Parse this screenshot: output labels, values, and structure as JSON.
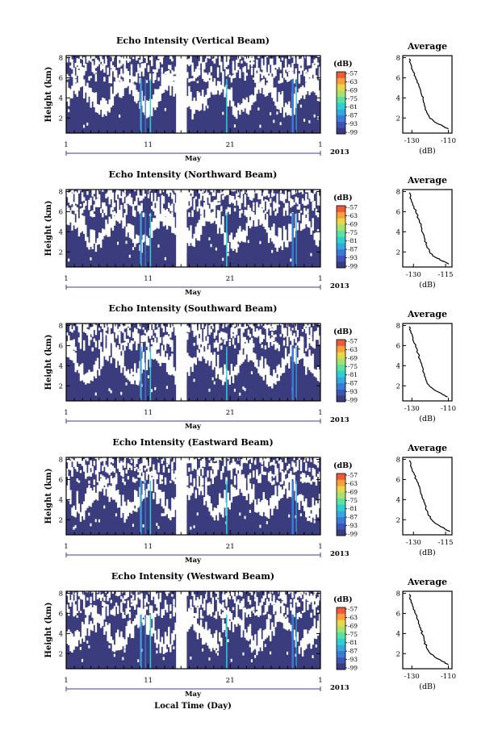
{
  "figure": {
    "xlabel": "Local Time (Day)"
  },
  "chart_data": [
    {
      "type": "heatmap",
      "title": "Echo Intensity (Vertical Beam)",
      "ylabel": "Height (km)",
      "xticks": [
        "1",
        "11",
        "21",
        "1"
      ],
      "yticks": [
        "8",
        "6",
        "4",
        "2"
      ],
      "ylim": [
        0.5,
        8.2
      ],
      "month_label": "May",
      "year_label": "2013",
      "colorbar_unit": "(dB)",
      "colorbar_ticks": [
        "-57",
        "-63",
        "-69",
        "-75",
        "-81",
        "-87",
        "-93",
        "-99"
      ],
      "colorscale": [
        "#3b3c7e",
        "#3b55b5",
        "#3a7ad6",
        "#33a8dc",
        "#2ecfd2",
        "#5ae0a0",
        "#a7e06a",
        "#e7d64a",
        "#f7a03a",
        "#ef5a3a"
      ],
      "average_profile": {
        "title": "Average",
        "xlabel": "(dB)",
        "xticks": [
          "-130",
          "-110"
        ],
        "xlim": [
          -135,
          -108
        ],
        "yticks": [
          "8",
          "6",
          "4",
          "2"
        ],
        "points": [
          [
            -131.5,
            7.9
          ],
          [
            -130.5,
            7.3
          ],
          [
            -129.3,
            6.6
          ],
          [
            -127.8,
            5.9
          ],
          [
            -126.2,
            5.2
          ],
          [
            -125.0,
            4.5
          ],
          [
            -124.0,
            3.9
          ],
          [
            -123.2,
            3.3
          ],
          [
            -122.0,
            2.7
          ],
          [
            -120.5,
            2.1
          ],
          [
            -117.5,
            1.6
          ],
          [
            -113.0,
            1.2
          ],
          [
            -110.0,
            0.9
          ]
        ]
      }
    },
    {
      "type": "heatmap",
      "title": "Echo Intensity (Northward Beam)",
      "ylabel": "Height (km)",
      "xticks": [
        "1",
        "11",
        "21",
        "1"
      ],
      "yticks": [
        "8",
        "6",
        "4",
        "2"
      ],
      "ylim": [
        0.5,
        8.2
      ],
      "month_label": "May",
      "year_label": "2013",
      "colorbar_unit": "(dB)",
      "colorbar_ticks": [
        "-57",
        "-63",
        "-69",
        "-75",
        "-81",
        "-87",
        "-93",
        "-99"
      ],
      "colorscale": [
        "#3b3c7e",
        "#3b55b5",
        "#3a7ad6",
        "#33a8dc",
        "#2ecfd2",
        "#5ae0a0",
        "#a7e06a",
        "#e7d64a",
        "#f7a03a",
        "#ef5a3a"
      ],
      "average_profile": {
        "title": "Average",
        "xlabel": "(dB)",
        "xticks": [
          "-130",
          "-115"
        ],
        "xlim": [
          -135,
          -112
        ],
        "yticks": [
          "8",
          "6",
          "4",
          "2"
        ],
        "points": [
          [
            -132.0,
            7.9
          ],
          [
            -131.0,
            7.2
          ],
          [
            -129.8,
            6.5
          ],
          [
            -128.5,
            5.8
          ],
          [
            -127.2,
            5.1
          ],
          [
            -126.2,
            4.4
          ],
          [
            -125.4,
            3.8
          ],
          [
            -124.6,
            3.2
          ],
          [
            -123.8,
            2.6
          ],
          [
            -122.5,
            2.0
          ],
          [
            -120.0,
            1.5
          ],
          [
            -116.5,
            1.1
          ],
          [
            -113.5,
            0.8
          ]
        ]
      }
    },
    {
      "type": "heatmap",
      "title": "Echo Intensity (Southward Beam)",
      "ylabel": "Height (km)",
      "xticks": [
        "1",
        "11",
        "21",
        "1"
      ],
      "yticks": [
        "8",
        "6",
        "4",
        "2"
      ],
      "ylim": [
        0.5,
        8.2
      ],
      "month_label": "May",
      "year_label": "2013",
      "colorbar_unit": "(dB)",
      "colorbar_ticks": [
        "-57",
        "-63",
        "-69",
        "-75",
        "-81",
        "-87",
        "-93",
        "-99"
      ],
      "colorscale": [
        "#3b3c7e",
        "#3b55b5",
        "#3a7ad6",
        "#33a8dc",
        "#2ecfd2",
        "#5ae0a0",
        "#a7e06a",
        "#e7d64a",
        "#f7a03a",
        "#ef5a3a"
      ],
      "average_profile": {
        "title": "Average",
        "xlabel": "(dB)",
        "xticks": [
          "-130",
          "-110"
        ],
        "xlim": [
          -135,
          -108
        ],
        "yticks": [
          "8",
          "6",
          "4",
          "2"
        ],
        "points": [
          [
            -131.5,
            7.9
          ],
          [
            -130.6,
            7.3
          ],
          [
            -129.5,
            6.6
          ],
          [
            -128.0,
            5.9
          ],
          [
            -126.5,
            5.2
          ],
          [
            -125.3,
            4.5
          ],
          [
            -124.3,
            3.9
          ],
          [
            -123.5,
            3.3
          ],
          [
            -122.4,
            2.7
          ],
          [
            -120.8,
            2.1
          ],
          [
            -117.8,
            1.6
          ],
          [
            -113.5,
            1.2
          ],
          [
            -110.5,
            0.9
          ]
        ]
      }
    },
    {
      "type": "heatmap",
      "title": "Echo Intensity (Eastward Beam)",
      "ylabel": "Height (km)",
      "xticks": [
        "1",
        "11",
        "21",
        "1"
      ],
      "yticks": [
        "8",
        "6",
        "4",
        "2"
      ],
      "ylim": [
        0.5,
        8.2
      ],
      "month_label": "May",
      "year_label": "2013",
      "colorbar_unit": "(dB)",
      "colorbar_ticks": [
        "-57",
        "-63",
        "-69",
        "-75",
        "-81",
        "-87",
        "-93",
        "-99"
      ],
      "colorscale": [
        "#3b3c7e",
        "#3b55b5",
        "#3a7ad6",
        "#33a8dc",
        "#2ecfd2",
        "#5ae0a0",
        "#a7e06a",
        "#e7d64a",
        "#f7a03a",
        "#ef5a3a"
      ],
      "average_profile": {
        "title": "Average",
        "xlabel": "(dB)",
        "xticks": [
          "-130",
          "-115"
        ],
        "xlim": [
          -135,
          -112
        ],
        "yticks": [
          "8",
          "6",
          "4",
          "2"
        ],
        "points": [
          [
            -132.0,
            7.9
          ],
          [
            -131.0,
            7.2
          ],
          [
            -129.6,
            6.5
          ],
          [
            -128.3,
            5.8
          ],
          [
            -127.0,
            5.1
          ],
          [
            -126.0,
            4.4
          ],
          [
            -125.2,
            3.8
          ],
          [
            -124.3,
            3.2
          ],
          [
            -123.3,
            2.6
          ],
          [
            -121.5,
            2.0
          ],
          [
            -118.5,
            1.5
          ],
          [
            -115.5,
            1.1
          ],
          [
            -113.0,
            0.8
          ]
        ]
      }
    },
    {
      "type": "heatmap",
      "title": "Echo Intensity (Westward Beam)",
      "ylabel": "Height (km)",
      "xticks": [
        "1",
        "11",
        "21",
        "1"
      ],
      "yticks": [
        "8",
        "6",
        "4",
        "2"
      ],
      "ylim": [
        0.5,
        8.2
      ],
      "month_label": "May",
      "year_label": "2013",
      "colorbar_unit": "(dB)",
      "colorbar_ticks": [
        "-57",
        "-63",
        "-69",
        "-75",
        "-81",
        "-87",
        "-93",
        "-99"
      ],
      "colorscale": [
        "#3b3c7e",
        "#3b55b5",
        "#3a7ad6",
        "#33a8dc",
        "#2ecfd2",
        "#5ae0a0",
        "#a7e06a",
        "#e7d64a",
        "#f7a03a",
        "#ef5a3a"
      ],
      "average_profile": {
        "title": "Average",
        "xlabel": "(dB)",
        "xticks": [
          "-130",
          "-110"
        ],
        "xlim": [
          -135,
          -108
        ],
        "yticks": [
          "8",
          "6",
          "4",
          "2"
        ],
        "points": [
          [
            -131.5,
            7.9
          ],
          [
            -130.4,
            7.3
          ],
          [
            -129.2,
            6.6
          ],
          [
            -127.8,
            5.9
          ],
          [
            -126.3,
            5.2
          ],
          [
            -125.1,
            4.5
          ],
          [
            -124.1,
            3.9
          ],
          [
            -123.3,
            3.3
          ],
          [
            -122.1,
            2.7
          ],
          [
            -120.3,
            2.1
          ],
          [
            -117.0,
            1.6
          ],
          [
            -112.8,
            1.2
          ],
          [
            -110.0,
            0.9
          ]
        ]
      }
    }
  ]
}
